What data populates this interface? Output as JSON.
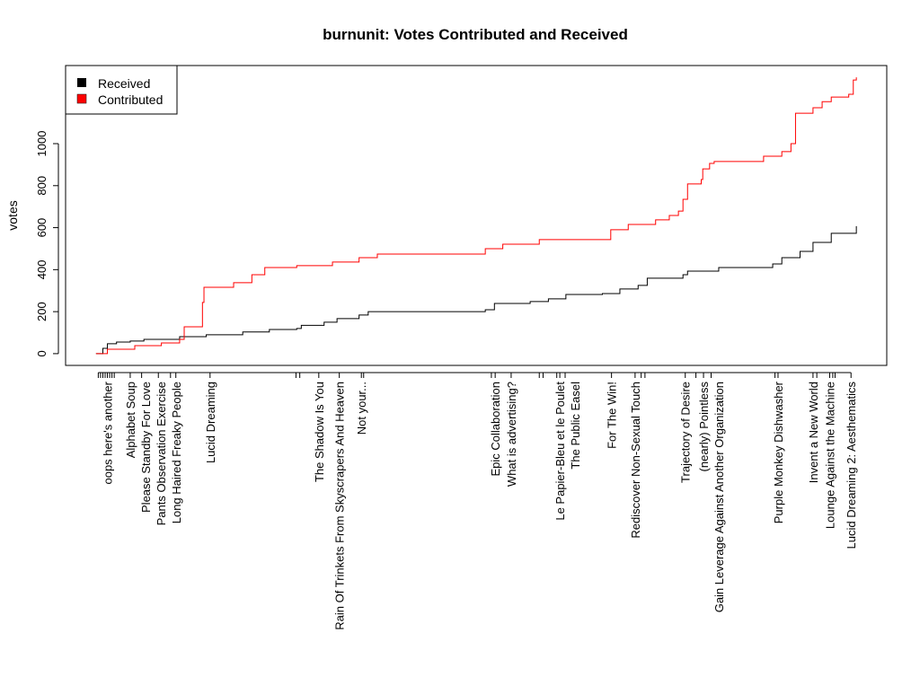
{
  "chart_data": {
    "type": "line",
    "step": true,
    "title": "burnunit: Votes Contributed and Received",
    "xlabel": "",
    "ylabel": "votes",
    "xlim": [
      -4,
      104
    ],
    "ylim": [
      -56,
      1372
    ],
    "yticks": [
      0,
      200,
      400,
      600,
      800,
      1000
    ],
    "grid": false,
    "legend": {
      "placement": "top-left",
      "entries": [
        {
          "label": "Received",
          "color": "#000000"
        },
        {
          "label": "Contributed",
          "color": "#ff0000"
        }
      ]
    },
    "series": [
      {
        "name": "Received",
        "color": "#000000",
        "points": [
          [
            0,
            0
          ],
          [
            0.9,
            25
          ],
          [
            1.5,
            47
          ],
          [
            2.7,
            55
          ],
          [
            4.5,
            60
          ],
          [
            6.3,
            68
          ],
          [
            11,
            81
          ],
          [
            14.5,
            90
          ],
          [
            19.3,
            103
          ],
          [
            22.8,
            115
          ],
          [
            26.4,
            120
          ],
          [
            27,
            135
          ],
          [
            30,
            150
          ],
          [
            31.7,
            167
          ],
          [
            34.6,
            184
          ],
          [
            35.8,
            200
          ],
          [
            51.2,
            209
          ],
          [
            52.4,
            239
          ],
          [
            57.1,
            248
          ],
          [
            59.5,
            261
          ],
          [
            61.8,
            282
          ],
          [
            66.6,
            286
          ],
          [
            68.9,
            308
          ],
          [
            71.3,
            325
          ],
          [
            72.5,
            359
          ],
          [
            77.2,
            376
          ],
          [
            77.8,
            393
          ],
          [
            81.9,
            410
          ],
          [
            89,
            427
          ],
          [
            90.2,
            457
          ],
          [
            92.6,
            487
          ],
          [
            94.3,
            530
          ],
          [
            96.7,
            573
          ],
          [
            100,
            607
          ]
        ]
      },
      {
        "name": "Contributed",
        "color": "#ff0000",
        "points": [
          [
            0,
            0
          ],
          [
            1.5,
            21
          ],
          [
            5.1,
            38
          ],
          [
            8.6,
            51
          ],
          [
            11,
            68
          ],
          [
            11.6,
            128
          ],
          [
            14,
            244
          ],
          [
            14.2,
            316
          ],
          [
            18.1,
            338
          ],
          [
            20.5,
            376
          ],
          [
            22.2,
            410
          ],
          [
            26.4,
            419
          ],
          [
            31.1,
            436
          ],
          [
            34.6,
            457
          ],
          [
            37,
            474
          ],
          [
            50.6,
            474
          ],
          [
            51.2,
            500
          ],
          [
            53.5,
            521
          ],
          [
            58.3,
            543
          ],
          [
            67.7,
            590
          ],
          [
            70,
            615
          ],
          [
            73.6,
            637
          ],
          [
            75.4,
            658
          ],
          [
            76.6,
            679
          ],
          [
            77.2,
            735
          ],
          [
            77.8,
            808
          ],
          [
            79.6,
            829
          ],
          [
            79.8,
            880
          ],
          [
            80.7,
            906
          ],
          [
            81.3,
            915
          ],
          [
            86.6,
            915
          ],
          [
            87.8,
            940
          ],
          [
            90.2,
            962
          ],
          [
            91.4,
            1000
          ],
          [
            92,
            1145
          ],
          [
            94.3,
            1171
          ],
          [
            95.5,
            1200
          ],
          [
            96.7,
            1222
          ],
          [
            99,
            1235
          ],
          [
            99.6,
            1303
          ],
          [
            100,
            1316
          ]
        ]
      }
    ],
    "x_labels": [
      {
        "x": 1.5,
        "label": "oops here's another"
      },
      {
        "x": 4.5,
        "label": "Alphabet Soup"
      },
      {
        "x": 6.0,
        "label": "Please Standby For Love"
      },
      {
        "x": 8.2,
        "label": "Pants Observation Exercise"
      },
      {
        "x": 9.8,
        "label": "Long Haired Freaky People"
      },
      {
        "x": 15.0,
        "label": "Lucid Dreaming"
      },
      {
        "x": 29.3,
        "label": "The Shadow Is You"
      },
      {
        "x": 32.0,
        "label": "Rain Of Trinkets From Skyscrapers And Heaven"
      },
      {
        "x": 34.9,
        "label": "Not your..."
      },
      {
        "x": 52.5,
        "label": "Epic Collaboration"
      },
      {
        "x": 54.6,
        "label": "What is advertising?"
      },
      {
        "x": 61.0,
        "label": "Le Papier-Bleu et le Poulet"
      },
      {
        "x": 61.7,
        "label": "The Public Easel"
      },
      {
        "x": 67.8,
        "label": "For The Win!"
      },
      {
        "x": 70.9,
        "label": "Rediscover Non-Sexual Touch"
      },
      {
        "x": 77.5,
        "label": "Trajectory of Desire"
      },
      {
        "x": 79.9,
        "label": "(nearly) Pointless"
      },
      {
        "x": 80.9,
        "label": "Gain Leverage Against Another Organization"
      },
      {
        "x": 89.7,
        "label": "Purple Monkey Dishwasher"
      },
      {
        "x": 94.3,
        "label": "Invent a New World"
      },
      {
        "x": 96.5,
        "label": "Lounge Against the Machine"
      },
      {
        "x": 99.3,
        "label": "Lucid Dreaming 2: Aesthematics"
      }
    ],
    "extra_ticks": [
      0.3,
      0.6,
      0.9,
      1.2,
      1.8,
      2.1,
      2.4,
      10.5,
      26.3,
      26.8,
      35.2,
      52.0,
      58.3,
      58.8,
      60.6,
      71.7,
      72.2,
      78.9,
      89.3,
      94.8,
      96.9,
      97.2
    ]
  }
}
